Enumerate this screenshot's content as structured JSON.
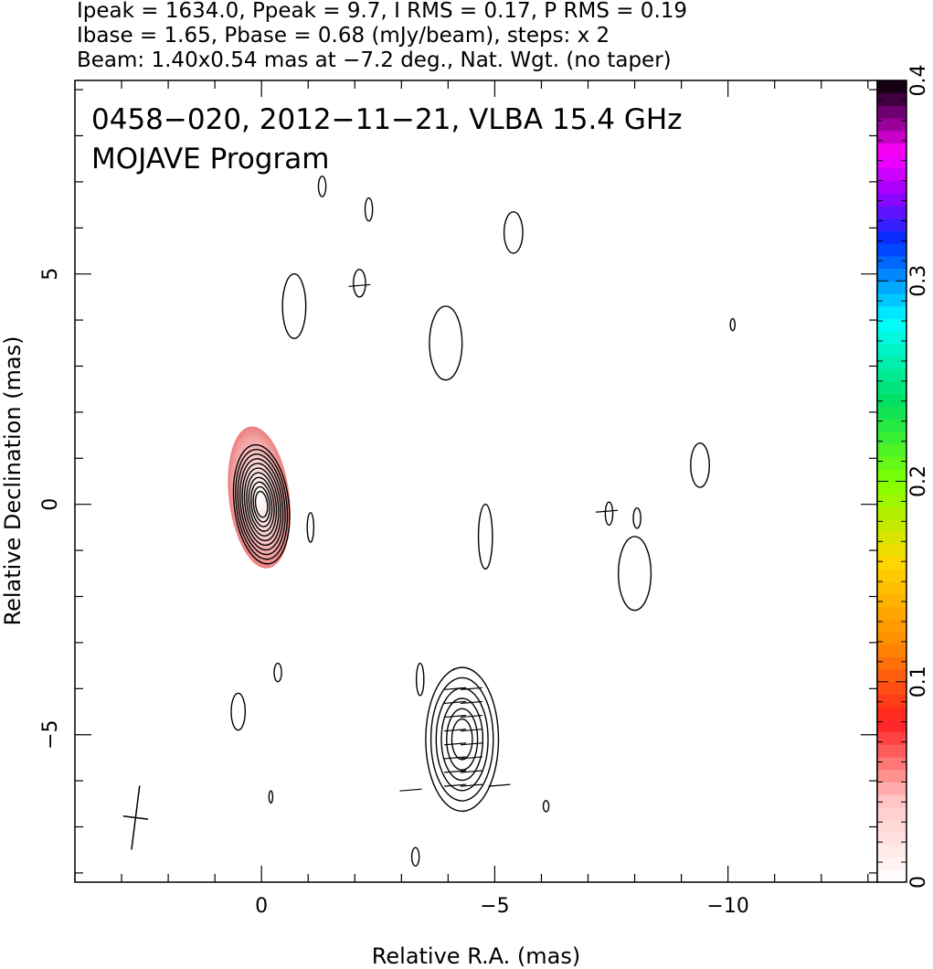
{
  "chart_data": {
    "type": "contour",
    "header_lines": [
      "Ipeak = 1634.0, Ppeak = 9.7, I RMS = 0.17, P RMS = 0.19",
      "Ibase = 1.65, Pbase = 0.68 (mJy/beam), steps: x 2",
      "Beam: 1.40x0.54 mas at −7.2 deg., Nat. Wgt. (no taper)"
    ],
    "title_lines": [
      "0458−020, 2012−11−21, VLBA 15.4 GHz",
      "MOJAVE Program"
    ],
    "xlabel": "Relative R.A. (mas)",
    "ylabel": "Relative Declination (mas)",
    "xlim": [
      4.0,
      -13.2
    ],
    "ylim": [
      -8.2,
      9.2
    ],
    "x_reversed": true,
    "x_ticks": [
      0,
      -5,
      -10
    ],
    "x_tick_labels": [
      "0",
      "−5",
      "−10"
    ],
    "y_ticks": [
      -5,
      0,
      5
    ],
    "y_tick_labels": [
      "−5",
      "0",
      "5"
    ],
    "colorbar": {
      "range": [
        0,
        0.4
      ],
      "ticks": [
        0,
        0.1,
        0.2,
        0.3,
        0.4
      ],
      "tick_labels": [
        "0",
        "0.1",
        "0.2",
        "0.3",
        "0.4"
      ]
    },
    "components": [
      {
        "x": 0.0,
        "y": 0.0,
        "levels": 11,
        "sigma_x": 0.45,
        "sigma_y": 1.0,
        "angle": -7
      },
      {
        "x": -4.3,
        "y": -5.1,
        "levels": 6,
        "sigma_x": 0.6,
        "sigma_y": 1.2,
        "angle": 0
      }
    ],
    "polarization_region": {
      "x": [
        -0.6,
        0.7
      ],
      "y": [
        -1.4,
        1.7
      ]
    },
    "beam": {
      "x": 2.7,
      "y": -6.8,
      "major": 1.4,
      "minor": 0.54,
      "pa": -7.2
    }
  }
}
